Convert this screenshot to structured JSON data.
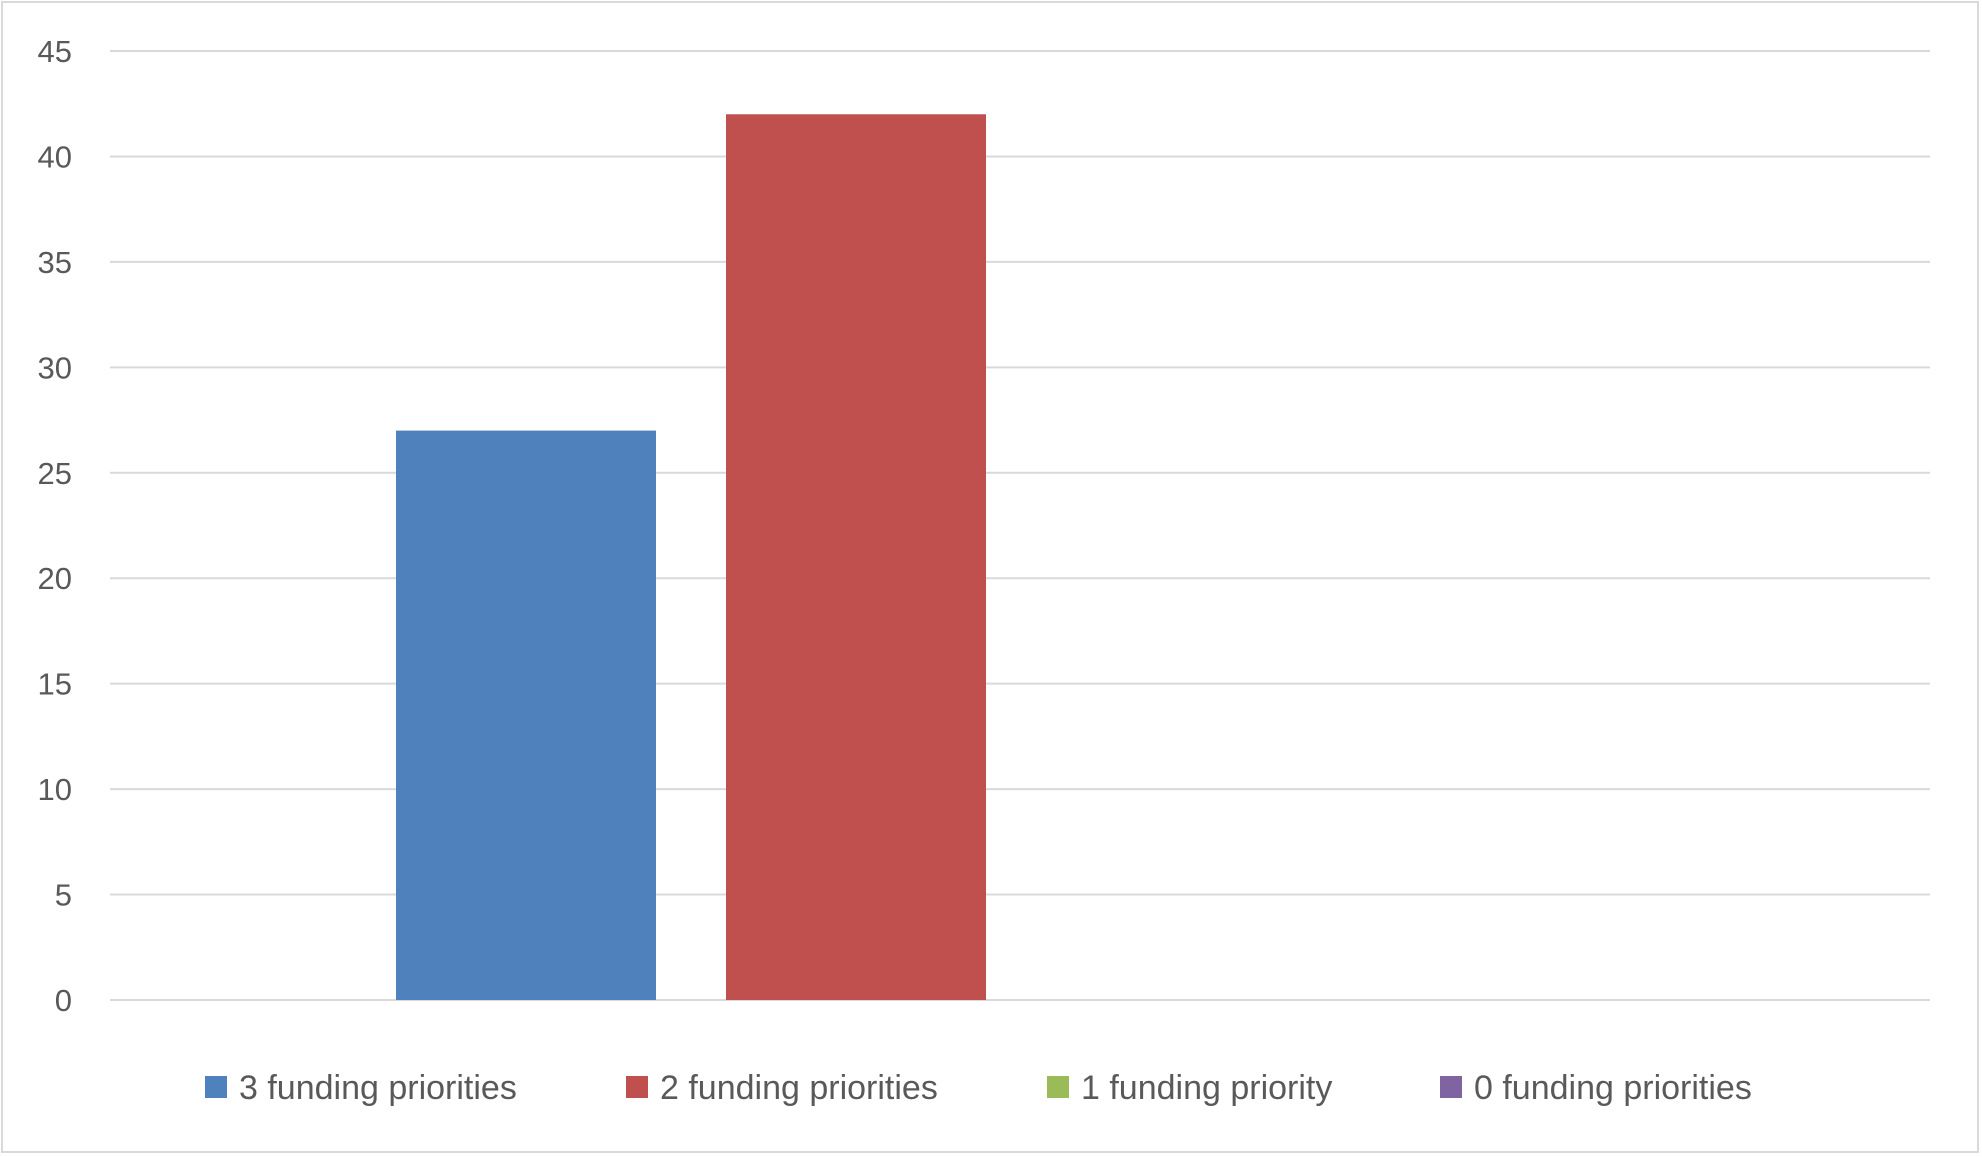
{
  "chart_data": {
    "type": "bar",
    "categories": [
      ""
    ],
    "series": [
      {
        "name": "3 funding priorities",
        "values": [
          27
        ],
        "color": "#4f81bd"
      },
      {
        "name": "2 funding priorities",
        "values": [
          42
        ],
        "color": "#c0504d"
      },
      {
        "name": "1 funding priority",
        "values": [
          0
        ],
        "color": "#9bbb59"
      },
      {
        "name": "0 funding priorities",
        "values": [
          0
        ],
        "color": "#8064a2"
      }
    ],
    "yticks": [
      "0",
      "5",
      "10",
      "15",
      "20",
      "25",
      "30",
      "35",
      "40",
      "45"
    ],
    "ylim": [
      0,
      45
    ],
    "grid": true,
    "legend_position": "bottom"
  }
}
